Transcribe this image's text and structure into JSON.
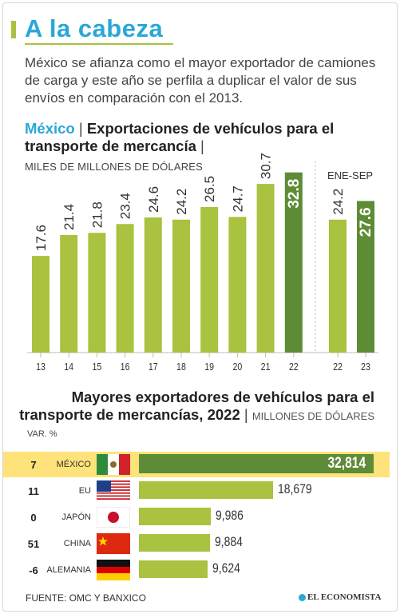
{
  "header": {
    "title": "A la cabeza",
    "intro": "México se afianza como el mayor exportador de camiones de carga y este año se perfila a duplicar el valor de sus envíos en comparación con el 2013."
  },
  "chart_data": [
    {
      "type": "bar",
      "title_highlight": "México",
      "title": "Exportaciones de vehículos para el transporte de mercancía",
      "units": "MILES DE MILLONES DE DÓLARES",
      "categories": [
        "13",
        "14",
        "15",
        "16",
        "17",
        "18",
        "19",
        "20",
        "21",
        "22"
      ],
      "values": [
        17.6,
        21.4,
        21.8,
        23.4,
        24.6,
        24.2,
        26.5,
        24.7,
        30.7,
        32.8
      ],
      "ylim": [
        0,
        40
      ],
      "colors": {
        "normal": "#a9c23f",
        "highlight": "#5e8b36"
      },
      "highlight_index": 9,
      "secondary": {
        "label": "ENE-SEP",
        "categories": [
          "22",
          "23"
        ],
        "values": [
          24.2,
          27.6
        ],
        "highlight_index": 1
      }
    },
    {
      "type": "bar",
      "orientation": "horizontal",
      "title": "Mayores exportadores de vehículos para el transporte de mercancías, 2022",
      "units": "MILLONES DE DÓLARES",
      "var_label": "VAR. %",
      "rows": [
        {
          "var": "7",
          "country": "MÉXICO",
          "value": 32814,
          "display": "32,814",
          "flag": "mexico-flag"
        },
        {
          "var": "11",
          "country": "EU",
          "value": 18679,
          "display": "18,679",
          "flag": "usa-flag"
        },
        {
          "var": "0",
          "country": "JAPÓN",
          "value": 9986,
          "display": "9,986",
          "flag": "japan-flag"
        },
        {
          "var": "51",
          "country": "CHINA",
          "value": 9884,
          "display": "9,884",
          "flag": "china-flag"
        },
        {
          "var": "-6",
          "country": "ALEMANIA",
          "value": 9624,
          "display": "9,624",
          "flag": "germany-flag"
        }
      ],
      "xlim": [
        0,
        33000
      ]
    }
  ],
  "footer": {
    "source": "FUENTE: OMC Y BANXICO",
    "logo": "EL ECONOMISTA"
  }
}
